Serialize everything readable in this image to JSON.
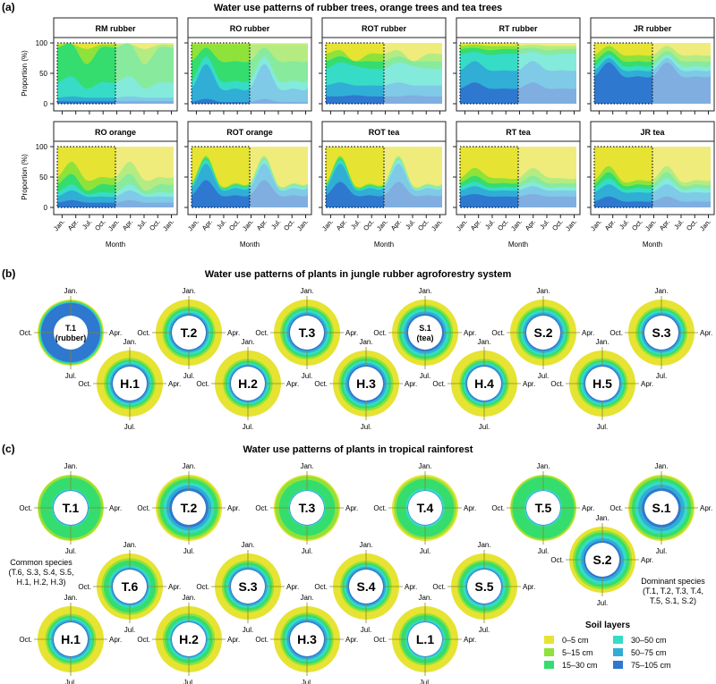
{
  "colors": {
    "layers": [
      "#e6e332",
      "#8ee23a",
      "#34dd6e",
      "#36dcc6",
      "#30aed6",
      "#2e78d0"
    ],
    "layers_faded": [
      "#efec7c",
      "#b4ec82",
      "#88ea9c",
      "#83eadc",
      "#7fcae6",
      "#80aee0"
    ]
  },
  "chart_data": [
    {
      "id": "a",
      "type": "area",
      "panel_label": "(a)",
      "title": "Water use patterns of rubber trees, orange trees and tea trees",
      "xlabel": "Month",
      "ylabel": "Proportion (%)",
      "ylim": [
        0,
        100
      ],
      "yticks": [
        "0",
        "50",
        "100"
      ],
      "xticks": [
        "Jan.",
        "Apr.",
        "Jul.",
        "Oct.",
        "Jan.",
        "Apr.",
        "Jul.",
        "Oct.",
        "Jan."
      ],
      "highlight_box": "first year (Jan.–Dec.), dotted outline; second year faded repeat",
      "layers": [
        "0–5 cm",
        "5–15 cm",
        "15–30 cm",
        "30–50 cm",
        "50–75 cm",
        "75–105 cm"
      ],
      "layer_order_note": "cumulative upper boundaries of stacked layers from deepest (75–105 cm, bottom) to shallowest (0–5 cm, top); values at Jan., Apr., Jul., Oct.",
      "subplots": [
        {
          "title": "RM  rubber",
          "row": 0,
          "boundaries": {
            "75-105": [
              4,
              4,
              4,
              4
            ],
            "50-75": [
              10,
              12,
              10,
              10
            ],
            "30-50": [
              35,
              45,
              25,
              35
            ],
            "15-30": [
              92,
              98,
              65,
              92
            ],
            "5-15": [
              97,
              98,
              90,
              97
            ]
          }
        },
        {
          "title": "RO  rubber",
          "row": 0,
          "boundaries": {
            "75-105": [
              3,
              8,
              3,
              3
            ],
            "50-75": [
              25,
              65,
              25,
              25
            ],
            "30-50": [
              38,
              78,
              38,
              38
            ],
            "15-30": [
              70,
              92,
              70,
              70
            ],
            "5-15": [
              98,
              98,
              98,
              98
            ]
          }
        },
        {
          "title": "ROT  rubber",
          "row": 0,
          "boundaries": {
            "75-105": [
              12,
              12,
              14,
              12
            ],
            "50-75": [
              30,
              35,
              30,
              30
            ],
            "30-50": [
              58,
              68,
              62,
              58
            ],
            "15-30": [
              70,
              78,
              70,
              70
            ],
            "5-15": [
              82,
              88,
              70,
              82
            ]
          }
        },
        {
          "title": "RT  rubber",
          "row": 0,
          "boundaries": {
            "75-105": [
              25,
              35,
              25,
              25
            ],
            "50-75": [
              55,
              70,
              55,
              55
            ],
            "30-50": [
              82,
              85,
              80,
              82
            ],
            "15-30": [
              90,
              92,
              88,
              90
            ],
            "5-15": [
              95,
              97,
              95,
              95
            ]
          }
        },
        {
          "title": "JR  rubber",
          "row": 0,
          "boundaries": {
            "75-105": [
              45,
              68,
              45,
              45
            ],
            "50-75": [
              55,
              75,
              55,
              55
            ],
            "30-50": [
              62,
              80,
              62,
              62
            ],
            "15-30": [
              70,
              87,
              70,
              70
            ],
            "5-15": [
              80,
              95,
              80,
              80
            ]
          }
        },
        {
          "title": "RO  orange",
          "row": 1,
          "boundaries": {
            "75-105": [
              8,
              12,
              8,
              8
            ],
            "50-75": [
              18,
              28,
              18,
              18
            ],
            "30-50": [
              25,
              38,
              22,
              25
            ],
            "15-30": [
              38,
              55,
              28,
              38
            ],
            "5-15": [
              50,
              75,
              45,
              50
            ]
          }
        },
        {
          "title": "ROT  orange",
          "row": 1,
          "boundaries": {
            "75-105": [
              20,
              45,
              20,
              20
            ],
            "50-75": [
              32,
              72,
              30,
              32
            ],
            "30-50": [
              36,
              78,
              32,
              36
            ],
            "15-30": [
              38,
              82,
              34,
              38
            ],
            "5-15": [
              40,
              85,
              36,
              40
            ]
          }
        },
        {
          "title": "ROT  tea",
          "row": 1,
          "boundaries": {
            "75-105": [
              20,
              42,
              20,
              20
            ],
            "50-75": [
              32,
              72,
              30,
              32
            ],
            "30-50": [
              35,
              78,
              32,
              35
            ],
            "15-30": [
              37,
              82,
              34,
              37
            ],
            "5-15": [
              39,
              85,
              36,
              39
            ]
          }
        },
        {
          "title": "RT  tea",
          "row": 1,
          "boundaries": {
            "75-105": [
              18,
              22,
              18,
              18
            ],
            "50-75": [
              28,
              35,
              28,
              28
            ],
            "30-50": [
              34,
              42,
              33,
              34
            ],
            "15-30": [
              40,
              52,
              40,
              40
            ],
            "5-15": [
              48,
              65,
              50,
              48
            ]
          }
        },
        {
          "title": "JR  tea",
          "row": 1,
          "boundaries": {
            "75-105": [
              10,
              18,
              10,
              10
            ],
            "50-75": [
              25,
              38,
              25,
              25
            ],
            "30-50": [
              32,
              48,
              30,
              32
            ],
            "15-30": [
              38,
              58,
              36,
              38
            ],
            "5-15": [
              45,
              68,
              42,
              45
            ]
          }
        }
      ]
    },
    {
      "id": "b",
      "type": "radial-stacked",
      "panel_label": "(b)",
      "title": "Water use patterns of plants in jungle rubber agroforestry system",
      "month_labels": [
        "Jan.",
        "Apr.",
        "Jul.",
        "Oct."
      ],
      "plants": [
        {
          "label": "T.1",
          "sublabel": "(rubber)",
          "row": 0,
          "col": 0,
          "shares": [
            6,
            4,
            4,
            4,
            4,
            78
          ]
        },
        {
          "label": "T.2",
          "row": 0,
          "col": 1,
          "shares": [
            42,
            12,
            14,
            14,
            10,
            8
          ]
        },
        {
          "label": "T.3",
          "row": 0,
          "col": 2,
          "shares": [
            40,
            12,
            14,
            14,
            12,
            8
          ]
        },
        {
          "label": "S.1",
          "sublabel": "(tea)",
          "row": 0,
          "col": 3,
          "shares": [
            32,
            12,
            14,
            16,
            14,
            12
          ]
        },
        {
          "label": "S.2",
          "row": 0,
          "col": 4,
          "shares": [
            40,
            12,
            14,
            14,
            12,
            8
          ]
        },
        {
          "label": "S.3",
          "row": 0,
          "col": 5,
          "shares": [
            45,
            12,
            12,
            12,
            11,
            8
          ]
        },
        {
          "label": "H.1",
          "row": 1,
          "col": 0,
          "shares": [
            46,
            12,
            12,
            12,
            10,
            8
          ]
        },
        {
          "label": "H.2",
          "row": 1,
          "col": 1,
          "shares": [
            52,
            12,
            12,
            10,
            8,
            6
          ]
        },
        {
          "label": "H.3",
          "row": 1,
          "col": 2,
          "shares": [
            36,
            14,
            14,
            14,
            12,
            10
          ]
        },
        {
          "label": "H.4",
          "row": 1,
          "col": 3,
          "shares": [
            52,
            12,
            12,
            10,
            8,
            6
          ]
        },
        {
          "label": "H.5",
          "row": 1,
          "col": 4,
          "shares": [
            48,
            12,
            12,
            12,
            9,
            7
          ]
        }
      ]
    },
    {
      "id": "c",
      "type": "radial-stacked",
      "panel_label": "(c)",
      "title": "Water use patterns of plants in tropical rainforest",
      "month_labels": [
        "Jan.",
        "Apr.",
        "Jul.",
        "Oct."
      ],
      "plants": [
        {
          "label": "T.1",
          "group": "dominant",
          "shares": [
            4,
            14,
            70,
            6,
            4,
            2
          ]
        },
        {
          "label": "T.2",
          "group": "dominant",
          "shares": [
            12,
            14,
            22,
            18,
            18,
            16
          ]
        },
        {
          "label": "T.3",
          "group": "dominant",
          "shares": [
            8,
            24,
            58,
            6,
            2,
            2
          ]
        },
        {
          "label": "T.4",
          "group": "dominant",
          "shares": [
            12,
            14,
            58,
            12,
            2,
            2
          ]
        },
        {
          "label": "T.5",
          "group": "dominant",
          "shares": [
            4,
            10,
            74,
            8,
            2,
            2
          ]
        },
        {
          "label": "S.1",
          "group": "dominant",
          "shares": [
            8,
            14,
            20,
            20,
            22,
            16
          ]
        },
        {
          "label": "S.2",
          "group": "dominant",
          "shares": [
            22,
            14,
            18,
            18,
            16,
            12
          ]
        },
        {
          "label": "T.6",
          "group": "common",
          "shares": [
            30,
            14,
            30,
            12,
            8,
            6
          ]
        },
        {
          "label": "S.3",
          "group": "common",
          "shares": [
            44,
            12,
            16,
            12,
            10,
            6
          ]
        },
        {
          "label": "S.4",
          "group": "common",
          "shares": [
            46,
            12,
            12,
            12,
            10,
            8
          ]
        },
        {
          "label": "S.5",
          "group": "common",
          "shares": [
            40,
            12,
            22,
            14,
            8,
            4
          ]
        },
        {
          "label": "H.1",
          "group": "common",
          "shares": [
            48,
            12,
            12,
            12,
            10,
            6
          ]
        },
        {
          "label": "H.2",
          "group": "common",
          "shares": [
            44,
            14,
            20,
            12,
            6,
            4
          ]
        },
        {
          "label": "H.3",
          "group": "common",
          "shares": [
            40,
            12,
            14,
            14,
            12,
            8
          ]
        },
        {
          "label": "L.1",
          "group": "other",
          "shares": [
            44,
            12,
            26,
            10,
            6,
            2
          ]
        }
      ],
      "annotations": {
        "common": [
          "Common species",
          "(T.6, S.3, S.4, S.5,",
          "H.1, H.2, H.3)"
        ],
        "dominant": [
          "Dominant species",
          "(T.1, T.2, T.3, T.4,",
          "T.5, S.1, S.2)"
        ]
      },
      "legend": {
        "title": "Soil layers",
        "entries": [
          "0–5 cm",
          "5–15 cm",
          "15–30 cm",
          "30–50 cm",
          "50–75 cm",
          "75–105 cm"
        ],
        "placement": "bottom-right"
      }
    }
  ]
}
